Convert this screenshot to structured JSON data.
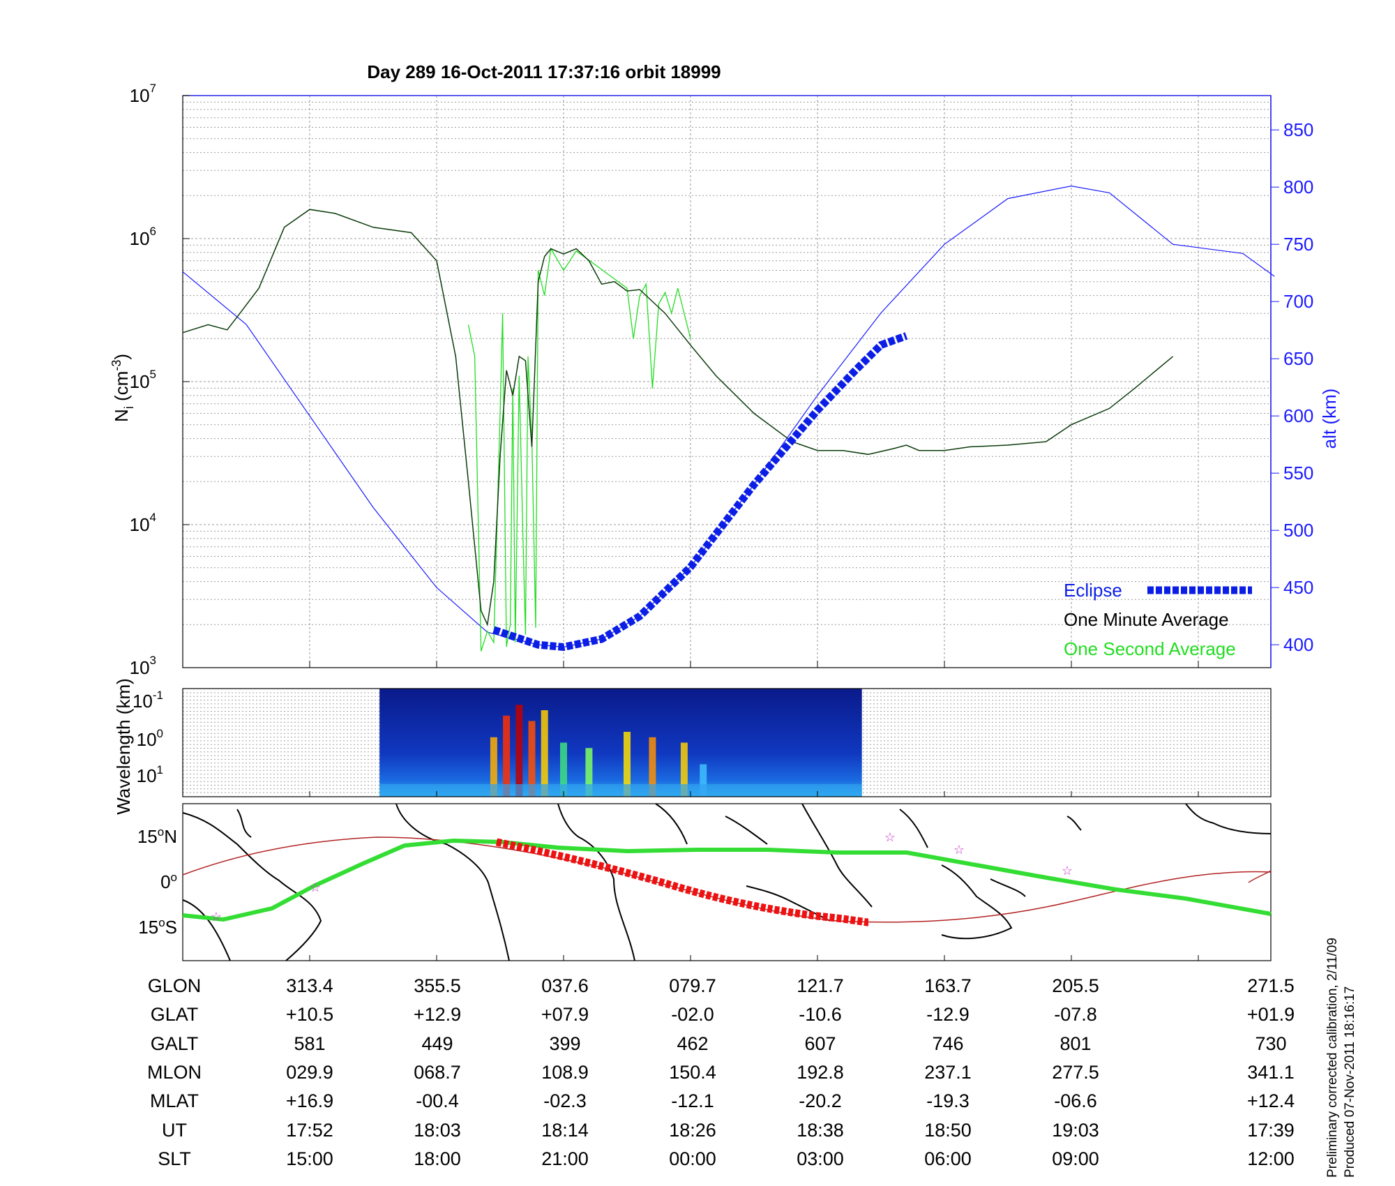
{
  "title": "Day 289  16-Oct-2011 17:37:16   orbit 18999",
  "colors": {
    "axis_blue": "#1a1aff",
    "eclipse": "#0a1ee6",
    "one_minute": "#0b3b0b",
    "one_second": "#22dd22",
    "track_green": "#33dd33",
    "track_red": "#ee1111",
    "mag_equator": "#b22222",
    "star": "#cc33cc"
  },
  "chart_data": [
    {
      "type": "line",
      "title": "Day 289  16-Oct-2011 17:37:16   orbit 18999",
      "x_positions_labeled": [
        1,
        2,
        3,
        4,
        5,
        6,
        7,
        8,
        9
      ],
      "xlim": [
        0,
        8.6
      ],
      "y_left": {
        "label": "N_i (cm^-3)",
        "label_main": "N",
        "label_sub": "i",
        "label_unit": " (cm",
        "label_sup": "-3",
        "label_close": ")",
        "scale": "log",
        "ylim": [
          1000,
          10000000
        ],
        "tick_base": "10",
        "tick_exponents": [
          "3",
          "4",
          "5",
          "6",
          "7"
        ]
      },
      "y_right": {
        "label": "alt (km)",
        "ylim": [
          380,
          880
        ],
        "ticks": [
          "400",
          "450",
          "500",
          "550",
          "600",
          "650",
          "700",
          "750",
          "800",
          "850"
        ]
      },
      "grid": true,
      "legend": {
        "placement": "bottom-right",
        "entries": [
          "Eclipse",
          "One Minute Average",
          "One Second Average"
        ]
      },
      "series": [
        {
          "name": "One Minute Average",
          "axis": "left",
          "x": [
            0,
            0.2,
            0.35,
            0.45,
            0.6,
            0.8,
            1.0,
            1.2,
            1.5,
            1.8,
            2.0,
            2.15,
            2.25,
            2.35,
            2.4,
            2.45,
            2.5,
            2.55,
            2.6,
            2.65,
            2.7,
            2.75,
            2.8,
            2.85,
            2.9,
            3.0,
            3.1,
            3.2,
            3.3,
            3.4,
            3.5,
            3.6,
            3.8,
            4.0,
            4.2,
            4.5,
            4.8,
            5.0,
            5.2,
            5.4,
            5.6,
            5.7,
            5.8,
            6.0,
            6.2,
            6.5,
            6.8,
            7.0,
            7.3,
            7.5,
            7.8
          ],
          "y": [
            220000,
            250000,
            230000,
            300000,
            450000,
            1200000,
            1600000,
            1500000,
            1200000,
            1100000,
            700000,
            150000,
            20000,
            2500,
            2000,
            4000,
            30000,
            120000,
            80000,
            150000,
            140000,
            35000,
            500000,
            750000,
            850000,
            780000,
            850000,
            700000,
            480000,
            500000,
            430000,
            440000,
            300000,
            180000,
            110000,
            60000,
            38000,
            33000,
            33000,
            31000,
            34000,
            36000,
            33000,
            33000,
            35000,
            36000,
            38000,
            50000,
            65000,
            90000,
            150000
          ]
        },
        {
          "name": "One Second Average",
          "axis": "left",
          "x": [
            2.25,
            2.3,
            2.35,
            2.4,
            2.45,
            2.5,
            2.52,
            2.55,
            2.58,
            2.6,
            2.62,
            2.65,
            2.68,
            2.7,
            2.72,
            2.75,
            2.78,
            2.8,
            2.85,
            2.9,
            3.0,
            3.1,
            3.5,
            3.55,
            3.6,
            3.65,
            3.7,
            3.75,
            3.8,
            3.85,
            3.9,
            4.0
          ],
          "y": [
            250000,
            150000,
            1300,
            1800,
            1500,
            60000,
            300000,
            1400,
            2000,
            90000,
            1500,
            110000,
            8000,
            1700,
            150000,
            40000,
            1900,
            600000,
            400000,
            850000,
            600000,
            820000,
            450000,
            200000,
            400000,
            480000,
            90000,
            350000,
            420000,
            300000,
            450000,
            200000
          ]
        },
        {
          "name": "Altitude",
          "axis": "right",
          "x": [
            0,
            0.5,
            1.0,
            1.5,
            2.0,
            2.4,
            2.8,
            3.0,
            3.3,
            3.6,
            4.0,
            4.5,
            5.0,
            5.5,
            6.0,
            6.5,
            7.0,
            7.3,
            7.8,
            8.35,
            8.6
          ],
          "y": [
            726,
            680,
            600,
            520,
            450,
            411,
            400,
            398,
            405,
            425,
            468,
            540,
            618,
            690,
            750,
            790,
            801,
            795,
            750,
            742,
            722
          ]
        },
        {
          "name": "Eclipse",
          "axis": "right",
          "x": [
            2.45,
            2.8,
            3.0,
            3.3,
            3.6,
            4.0,
            4.5,
            5.0,
            5.3,
            5.5,
            5.7
          ],
          "y": [
            413,
            400,
            398,
            405,
            425,
            468,
            540,
            605,
            640,
            662,
            670
          ]
        }
      ]
    },
    {
      "type": "heatmap",
      "ylabel": "Wavelength (km)",
      "yscale": "log",
      "tick_base": "10",
      "tick_exponents": [
        "-1",
        "0",
        "1"
      ],
      "active_x_range": [
        1.55,
        5.35
      ]
    }
  ],
  "map": {
    "lat_labels": [
      "15ºN",
      "0º",
      "15ºS"
    ],
    "lat_label_parts": [
      {
        "value": "15",
        "sup": "o",
        "hem": "N"
      },
      {
        "value": "0",
        "sup": "o",
        "hem": ""
      },
      {
        "value": "15",
        "sup": "o",
        "hem": "S"
      }
    ]
  },
  "table": {
    "rows": [
      {
        "label": "GLON",
        "values": [
          "313.4",
          "355.5",
          "037.6",
          "079.7",
          "121.7",
          "163.7",
          "205.5",
          "271.5"
        ]
      },
      {
        "label": "GLAT",
        "values": [
          "+10.5",
          "+12.9",
          "+07.9",
          "-02.0",
          "-10.6",
          "-12.9",
          "-07.8",
          "+01.9"
        ]
      },
      {
        "label": "GALT",
        "values": [
          "581",
          "449",
          "399",
          "462",
          "607",
          "746",
          "801",
          "730"
        ]
      },
      {
        "label": "MLON",
        "values": [
          "029.9",
          "068.7",
          "108.9",
          "150.4",
          "192.8",
          "237.1",
          "277.5",
          "341.1"
        ]
      },
      {
        "label": "MLAT",
        "values": [
          "+16.9",
          "-00.4",
          "-02.3",
          "-12.1",
          "-20.2",
          "-19.3",
          "-06.6",
          "+12.4"
        ]
      },
      {
        "label": "UT",
        "values": [
          "17:52",
          "18:03",
          "18:14",
          "18:26",
          "18:38",
          "18:50",
          "19:03",
          "17:39"
        ]
      },
      {
        "label": "SLT",
        "values": [
          "15:00",
          "18:00",
          "21:00",
          "00:00",
          "03:00",
          "06:00",
          "09:00",
          "12:00"
        ]
      }
    ]
  },
  "footnote": {
    "line1": "Preliminary corrected calibration, 2/11/09",
    "line2": "Produced 07-Nov-2011 18:16:17"
  }
}
